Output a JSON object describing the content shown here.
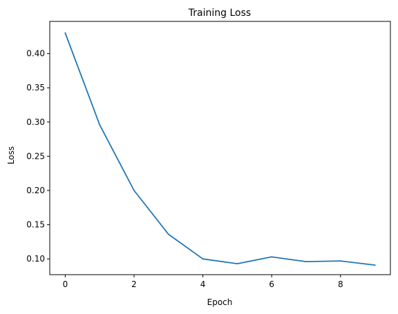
{
  "chart_data": {
    "type": "line",
    "title": "Training Loss",
    "xlabel": "Epoch",
    "ylabel": "Loss",
    "x": [
      0,
      1,
      2,
      3,
      4,
      5,
      6,
      7,
      8,
      9
    ],
    "series": [
      {
        "values": [
          0.43,
          0.296,
          0.2,
          0.136,
          0.1,
          0.093,
          0.103,
          0.096,
          0.097,
          0.091
        ],
        "color": "#1f77b4"
      }
    ],
    "xlim": [
      -0.45,
      9.45
    ],
    "ylim": [
      0.077,
      0.447
    ],
    "xticks": [
      0,
      2,
      4,
      6,
      8
    ],
    "xtick_labels": [
      "0",
      "2",
      "4",
      "6",
      "8"
    ],
    "yticks": [
      0.1,
      0.15,
      0.2,
      0.25,
      0.3,
      0.35,
      0.4
    ],
    "ytick_labels": [
      "0.10",
      "0.15",
      "0.20",
      "0.25",
      "0.30",
      "0.35",
      "0.40"
    ],
    "grid": false,
    "legend": false
  }
}
